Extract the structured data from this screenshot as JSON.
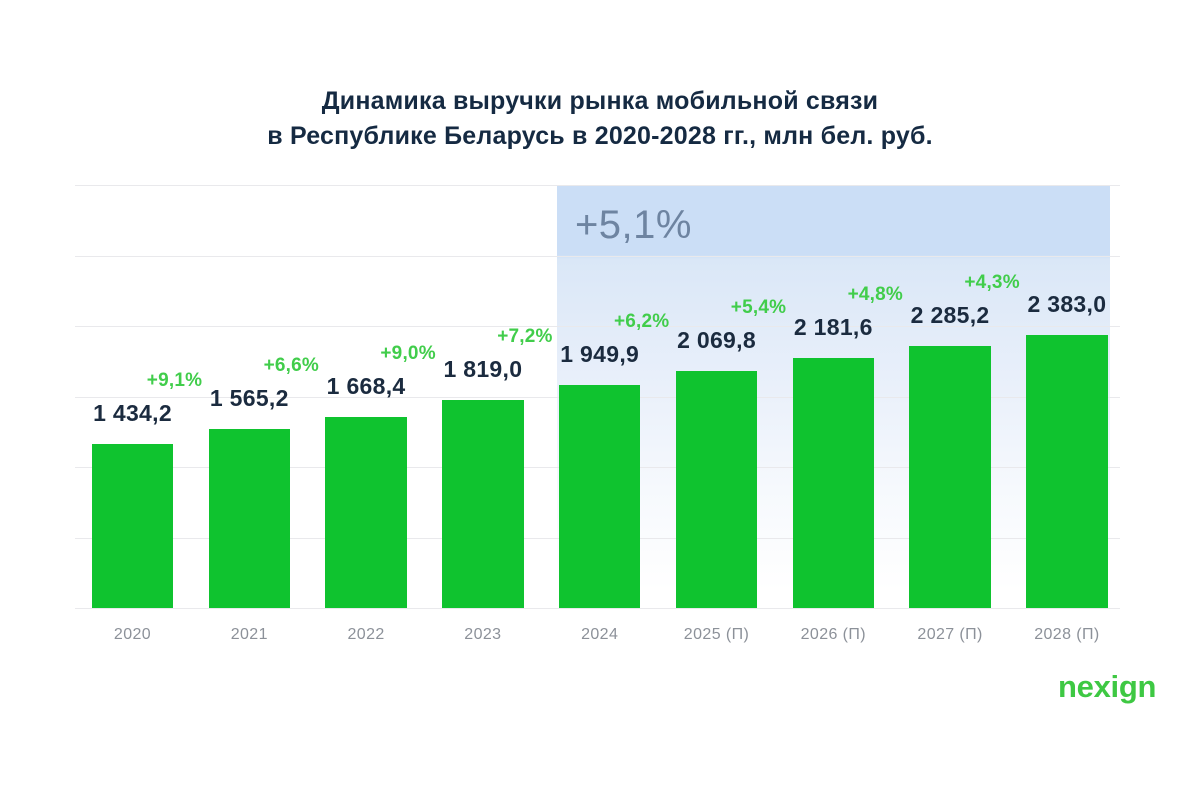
{
  "title": {
    "line1": "Динамика выручки рынка мобильной связи",
    "line2": "в Республике Беларусь в 2020-2028 гг., млн бел. руб."
  },
  "footer": {
    "logo_text": "nexign"
  },
  "colors": {
    "background": "#FFFFFF",
    "bar": "#0FC32F",
    "growth_text": "#41CD4B",
    "value_text": "#1B2B3F",
    "title_text": "#152A42",
    "axis_text": "#8C9199",
    "gridline": "#E9E9EC",
    "highlight_band": "#CBDEF6",
    "highlight_label": "#6E84A1",
    "logo": "#3EC843"
  },
  "chart_data": {
    "type": "bar",
    "title": "Динамика выручки рынка мобильной связи в Республике Беларусь в 2020-2028 гг., млн бел. руб.",
    "unit": "млн бел. руб.",
    "categories": [
      "2020",
      "2021",
      "2022",
      "2023",
      "2024",
      "2025 (П)",
      "2026 (П)",
      "2027 (П)",
      "2028 (П)"
    ],
    "values": [
      1434.2,
      1565.2,
      1668.4,
      1819.0,
      1949.9,
      2069.8,
      2181.6,
      2285.2,
      2383.0
    ],
    "value_labels": [
      "1 434,2",
      "1 565,2",
      "1 668,4",
      "1 819,0",
      "1 949,9",
      "2 069,8",
      "2 181,6",
      "2 285,2",
      "2 383,0"
    ],
    "growth_labels": [
      "+9,1%",
      "+6,6%",
      "+9,0%",
      "+7,2%",
      "+6,2%",
      "+5,4%",
      "+4,8%",
      "+4,3%",
      null
    ],
    "highlight": {
      "label": "+5,1%",
      "from_category": "2024",
      "to_category": "2028 (П)"
    },
    "xlabel": "",
    "ylabel": "",
    "ylim": [
      0,
      2500
    ],
    "grid": true,
    "y_axis_labels_shown": false,
    "legend": null
  }
}
